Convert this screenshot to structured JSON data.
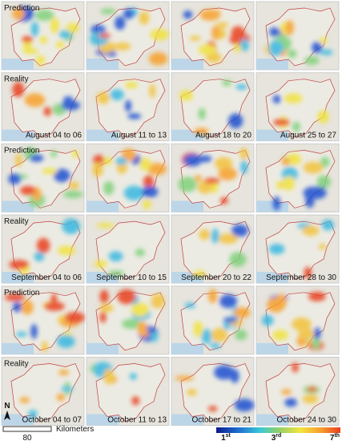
{
  "groups": [
    {
      "prediction_label": "Prediction",
      "reality_label": "Reality",
      "dates": [
        "August 04 to 06",
        "August 11 to 13",
        "August 18 to 20",
        "August 25 to 27"
      ]
    },
    {
      "prediction_label": "Prediction",
      "reality_label": "Reality",
      "dates": [
        "September 04 to 06",
        "September 10 to 15",
        "September 20 to 22",
        "September 28 to 30"
      ]
    },
    {
      "prediction_label": "Prediction",
      "reality_label": "Reality",
      "dates": [
        "October 04 to 07",
        "October 11 to 13",
        "October 17 to 21",
        "October 24 to 30"
      ]
    }
  ],
  "north": "N",
  "scale": {
    "distance": "80",
    "unit": "Kilometers"
  },
  "legend": {
    "labels": [
      {
        "main": "1",
        "sup": "st"
      },
      {
        "main": "3",
        "sup": "rd"
      },
      {
        "main": "7",
        "sup": "th"
      }
    ]
  }
}
